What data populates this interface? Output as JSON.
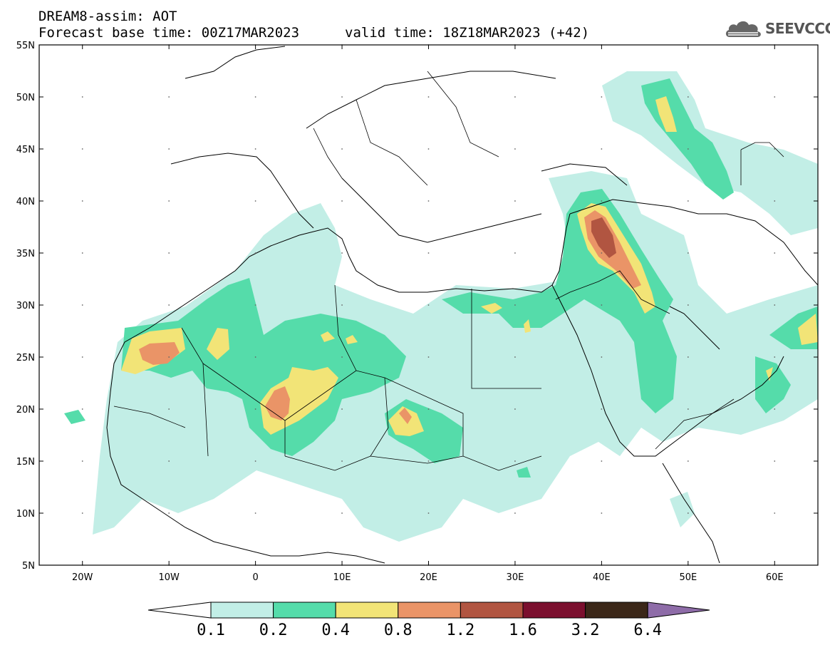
{
  "title": {
    "line1": "DREAM8-assim: AOT",
    "line2": "Forecast base time: 00Z17MAR2023",
    "valid": "valid time: 18Z18MAR2023 (+42)"
  },
  "logo": {
    "text": "SEEVCCC",
    "icon": "cloud-logo-icon"
  },
  "axes": {
    "lat_labels": [
      "55N",
      "50N",
      "45N",
      "40N",
      "35N",
      "30N",
      "25N",
      "20N",
      "15N",
      "10N",
      "5N"
    ],
    "lat_values": [
      55,
      50,
      45,
      40,
      35,
      30,
      25,
      20,
      15,
      10,
      5
    ],
    "lon_labels": [
      "20W",
      "10W",
      "0",
      "10E",
      "20E",
      "30E",
      "40E",
      "50E",
      "60E"
    ],
    "lon_values": [
      -20,
      -10,
      0,
      10,
      20,
      30,
      40,
      50,
      60
    ],
    "lon_range": [
      -25,
      65
    ],
    "lat_range": [
      5,
      55
    ]
  },
  "colorbar": {
    "levels": [
      "0.1",
      "0.2",
      "0.4",
      "0.8",
      "1.2",
      "1.6",
      "3.2",
      "6.4"
    ],
    "colors": [
      "#ffffff",
      "#c2eee6",
      "#55dcaa",
      "#f2e477",
      "#ea9467",
      "#b15541",
      "#7b0f2e",
      "#3b2718",
      "#8e6ca8"
    ]
  }
}
